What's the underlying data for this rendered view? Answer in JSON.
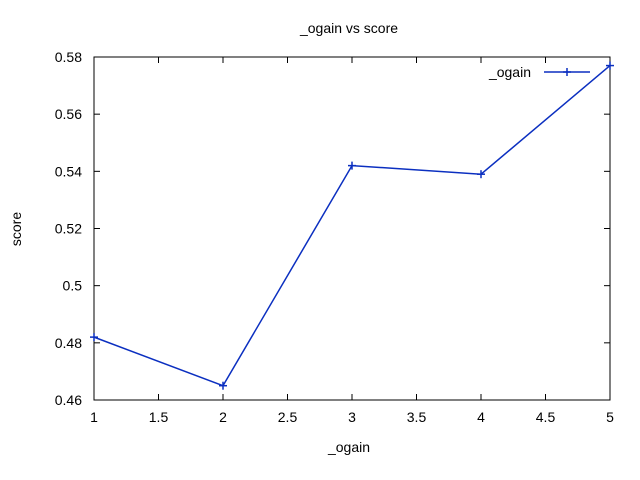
{
  "chart_data": {
    "type": "line",
    "title": "_ogain vs score",
    "xlabel": "_ogain",
    "ylabel": "score",
    "xlim": [
      1,
      5
    ],
    "ylim": [
      0.46,
      0.58
    ],
    "x_ticks": [
      "1",
      "1.5",
      "2",
      "2.5",
      "3",
      "3.5",
      "4",
      "4.5",
      "5"
    ],
    "y_ticks": [
      "0.46",
      "0.48",
      "0.5",
      "0.52",
      "0.54",
      "0.56",
      "0.58"
    ],
    "grid": false,
    "legend_position": "top-right",
    "series": [
      {
        "name": "_ogain",
        "color": "#0b2fc0",
        "marker": "plus",
        "x": [
          1,
          2,
          3,
          4,
          5
        ],
        "y": [
          0.482,
          0.465,
          0.542,
          0.539,
          0.577
        ]
      }
    ]
  }
}
